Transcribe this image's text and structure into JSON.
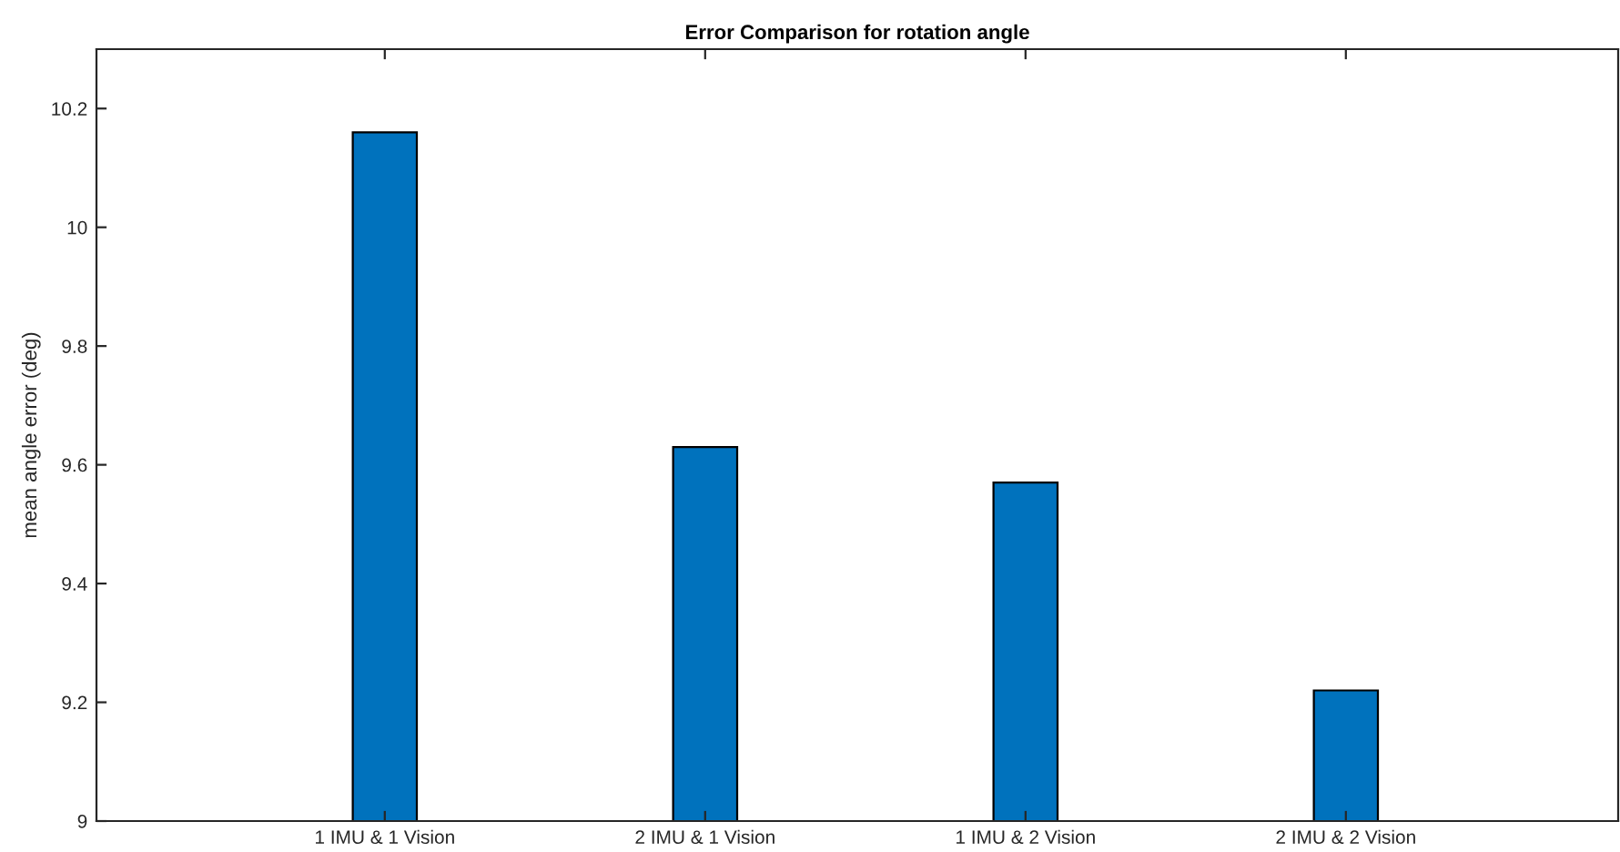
{
  "chart_data": {
    "type": "bar",
    "title": "Error Comparison for rotation angle",
    "ylabel": "mean angle error (deg)",
    "categories": [
      "1 IMU & 1 Vision",
      "2 IMU & 1 Vision",
      "1 IMU & 2 Vision",
      "2 IMU & 2 Vision"
    ],
    "values": [
      10.16,
      9.63,
      9.57,
      9.22
    ],
    "color": "#0072bd",
    "ylim": [
      9,
      10.3
    ],
    "yticks": [
      9,
      9.2,
      9.4,
      9.6,
      9.8,
      10,
      10.2
    ],
    "grid": false
  }
}
